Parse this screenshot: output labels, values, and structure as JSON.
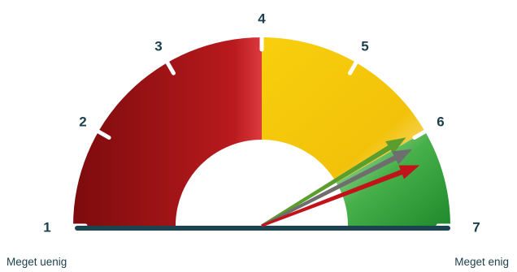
{
  "chart_data": {
    "type": "gauge",
    "scale": {
      "min": 1,
      "max": 7
    },
    "tick_labels": [
      "1",
      "2",
      "3",
      "4",
      "5",
      "6",
      "7"
    ],
    "min_label": "Meget uenig",
    "max_label": "Meget enig",
    "bands": [
      {
        "from": 1,
        "to": 4,
        "color": "#b3191c"
      },
      {
        "from": 4,
        "to": 6,
        "color": "#f5c30c"
      },
      {
        "from": 6,
        "to": 7,
        "color": "#2fa23a"
      }
    ],
    "pointers": [
      {
        "value": 5.95,
        "color": "#5c9e2e"
      },
      {
        "value": 6.1,
        "color": "#6e6e6e"
      },
      {
        "value": 6.3,
        "color": "#c0141a"
      }
    ]
  }
}
